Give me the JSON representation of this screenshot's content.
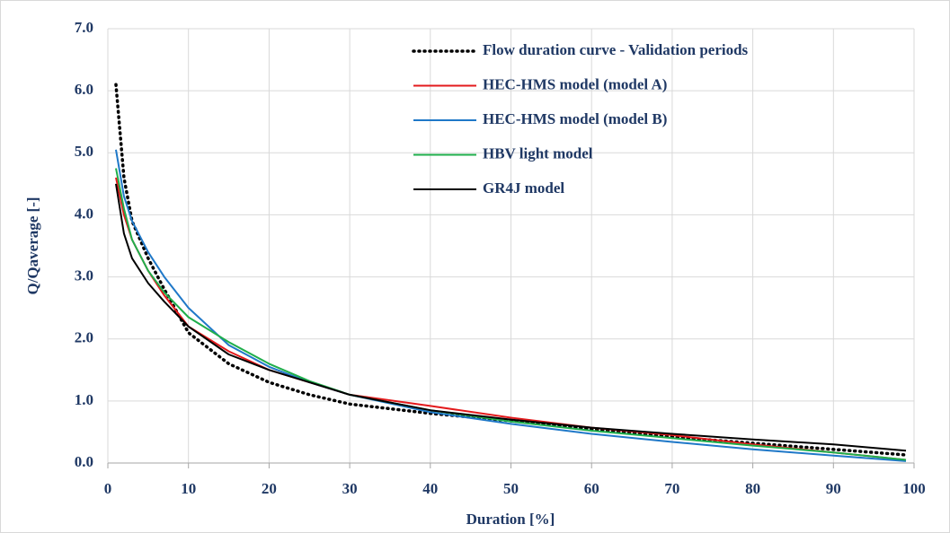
{
  "chart_data": {
    "type": "line",
    "x_label": "Duration [%]",
    "y_label": "Q/Qaverage [-]",
    "x": [
      1,
      2,
      3,
      5,
      7,
      10,
      15,
      20,
      25,
      30,
      40,
      50,
      60,
      70,
      80,
      90,
      99
    ],
    "series": [
      {
        "name": "Flow duration curve - Validation periods",
        "color": "#000000",
        "dash": "dotted",
        "values": [
          6.1,
          4.6,
          3.9,
          3.3,
          2.8,
          2.1,
          1.6,
          1.3,
          1.1,
          0.95,
          0.8,
          0.68,
          0.55,
          0.42,
          0.32,
          0.22,
          0.13
        ]
      },
      {
        "name": "HEC-HMS model (model A)",
        "color": "#e31a1c",
        "dash": "solid",
        "values": [
          4.6,
          4.0,
          3.6,
          3.1,
          2.7,
          2.2,
          1.8,
          1.5,
          1.3,
          1.1,
          0.92,
          0.73,
          0.57,
          0.45,
          0.3,
          0.17,
          0.05
        ]
      },
      {
        "name": "HEC-HMS model (model B)",
        "color": "#1f78c8",
        "dash": "solid",
        "values": [
          5.05,
          4.3,
          3.9,
          3.4,
          3.0,
          2.5,
          1.9,
          1.55,
          1.3,
          1.1,
          0.82,
          0.63,
          0.47,
          0.34,
          0.22,
          0.12,
          0.03
        ]
      },
      {
        "name": "HBV light model",
        "color": "#1fae4b",
        "dash": "solid",
        "values": [
          4.75,
          4.1,
          3.6,
          3.1,
          2.75,
          2.35,
          1.95,
          1.6,
          1.32,
          1.1,
          0.85,
          0.67,
          0.52,
          0.4,
          0.28,
          0.17,
          0.05
        ]
      },
      {
        "name": "GR4J model",
        "color": "#000000",
        "dash": "solid",
        "values": [
          4.5,
          3.7,
          3.3,
          2.9,
          2.6,
          2.2,
          1.75,
          1.5,
          1.3,
          1.1,
          0.85,
          0.7,
          0.57,
          0.47,
          0.38,
          0.3,
          0.2
        ]
      }
    ],
    "xlim": [
      0,
      100
    ],
    "xticks": [
      0,
      10,
      20,
      30,
      40,
      50,
      60,
      70,
      80,
      90,
      100
    ],
    "ylim": [
      0,
      7
    ],
    "yticks": [
      {
        "value": 0,
        "label": "0.0"
      },
      {
        "value": 1,
        "label": "1.0"
      },
      {
        "value": 2,
        "label": "2.0"
      },
      {
        "value": 3,
        "label": "3.0"
      },
      {
        "value": 4,
        "label": "4.0"
      },
      {
        "value": 5,
        "label": "5.0"
      },
      {
        "value": 6,
        "label": "6.0"
      },
      {
        "value": 7,
        "label": "7.0"
      }
    ],
    "grid": true,
    "legend": "top-right"
  }
}
